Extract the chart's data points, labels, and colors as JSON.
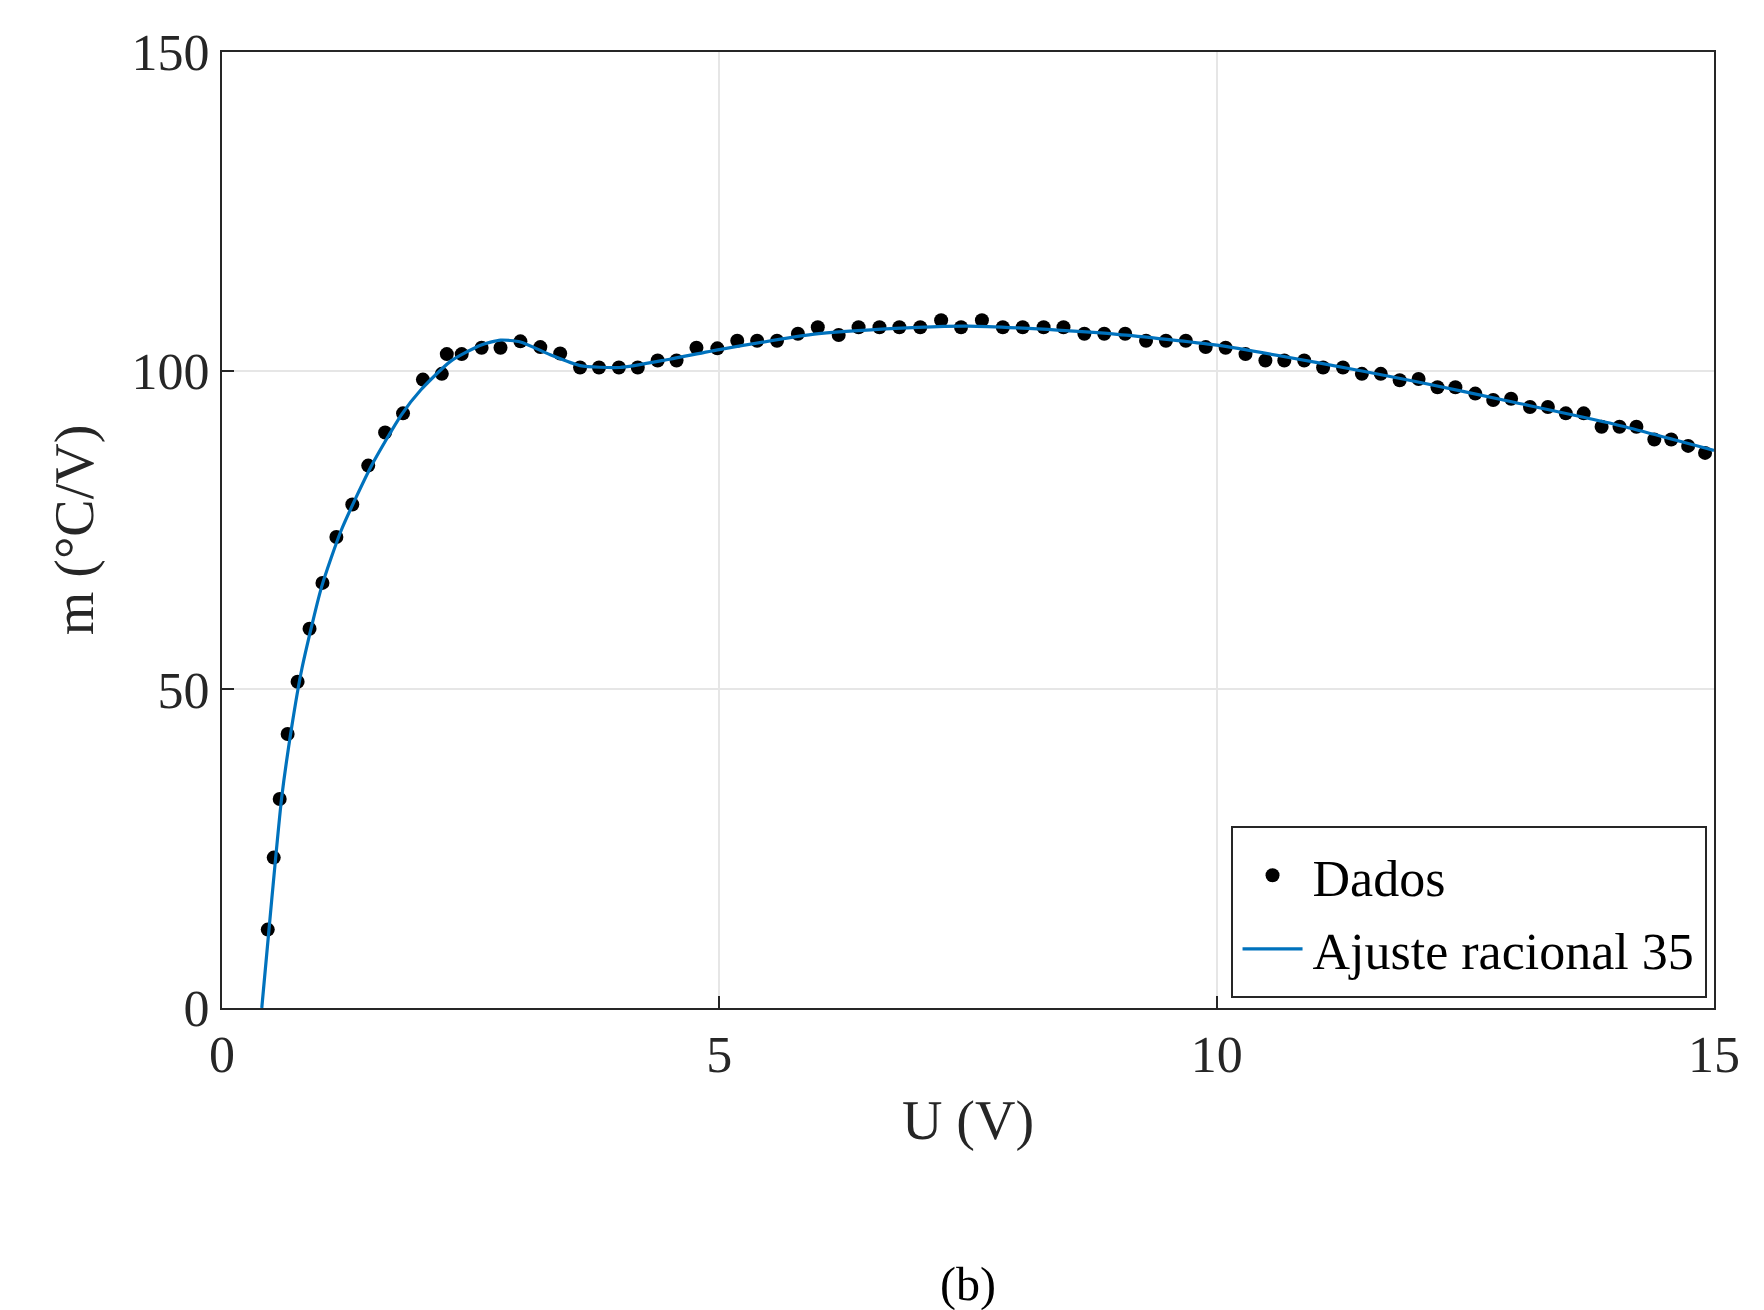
{
  "chart_data": {
    "type": "scatter",
    "xlabel": "U (V)",
    "ylabel": "m (°C/V)",
    "xlim": [
      0,
      15
    ],
    "ylim": [
      0,
      150
    ],
    "xticks": [
      0,
      5,
      10,
      15
    ],
    "yticks": [
      0,
      50,
      100,
      150
    ],
    "grid": true,
    "legend": "bottom right",
    "annotations": [
      "(b)"
    ],
    "series": [
      {
        "name": "Dados",
        "marker": "circle",
        "color": "#000000",
        "x": [
          0.46,
          0.52,
          0.58,
          0.66,
          0.76,
          0.88,
          1.01,
          1.15,
          1.31,
          1.47,
          1.64,
          1.82,
          2.02,
          2.21,
          2.26,
          2.41,
          2.61,
          2.8,
          3.0,
          3.2,
          3.4,
          3.6,
          3.79,
          3.99,
          4.18,
          4.38,
          4.57,
          4.77,
          4.98,
          5.18,
          5.38,
          5.58,
          5.79,
          5.99,
          6.2,
          6.4,
          6.61,
          6.81,
          7.02,
          7.23,
          7.43,
          7.64,
          7.85,
          8.05,
          8.26,
          8.46,
          8.67,
          8.87,
          9.08,
          9.29,
          9.49,
          9.69,
          9.89,
          10.09,
          10.29,
          10.49,
          10.68,
          10.88,
          11.07,
          11.27,
          11.46,
          11.65,
          11.84,
          12.03,
          12.22,
          12.4,
          12.6,
          12.78,
          12.96,
          13.15,
          13.33,
          13.51,
          13.69,
          13.87,
          14.05,
          14.22,
          14.4,
          14.57,
          14.74,
          14.91
        ],
        "values": [
          12.3,
          23.6,
          32.8,
          43.0,
          51.2,
          59.5,
          66.7,
          73.9,
          79.0,
          85.1,
          90.3,
          93.3,
          98.6,
          99.5,
          102.6,
          102.6,
          103.6,
          103.6,
          104.6,
          103.7,
          102.7,
          100.5,
          100.5,
          100.5,
          100.5,
          101.6,
          101.6,
          103.6,
          103.5,
          104.7,
          104.7,
          104.7,
          105.8,
          106.8,
          105.6,
          106.8,
          106.8,
          106.8,
          106.8,
          107.9,
          106.8,
          107.9,
          106.8,
          106.8,
          106.8,
          106.8,
          105.8,
          105.8,
          105.8,
          104.7,
          104.7,
          104.7,
          103.7,
          103.6,
          102.6,
          101.6,
          101.6,
          101.6,
          100.5,
          100.5,
          99.5,
          99.5,
          98.5,
          98.7,
          97.4,
          97.4,
          96.4,
          95.4,
          95.6,
          94.3,
          94.3,
          93.3,
          93.3,
          91.2,
          91.2,
          91.2,
          89.2,
          89.2,
          88.2,
          87.1
        ]
      },
      {
        "name": "Ajuste racional 35",
        "type": "line",
        "marker": "none",
        "line_style": "solid",
        "color": "#0072bd",
        "x": [
          0.4,
          0.5,
          0.6,
          0.7,
          0.8,
          1.0,
          1.2,
          1.5,
          1.8,
          2.0,
          2.3,
          2.6,
          2.8,
          3.0,
          3.3,
          3.6,
          4.0,
          4.5,
          5.0,
          6.0,
          7.0,
          7.5,
          8.0,
          9.0,
          10.0,
          11.0,
          12.0,
          13.0,
          14.0,
          15.0
        ],
        "values": [
          0,
          17,
          33,
          44,
          53,
          66,
          75,
          85,
          93,
          97,
          101.5,
          104,
          104.8,
          104.5,
          102.5,
          100.8,
          100.5,
          101.8,
          103.3,
          105.8,
          106.8,
          107,
          106.7,
          105.7,
          104,
          101.3,
          98.3,
          95,
          91.6,
          87.5
        ]
      }
    ]
  }
}
